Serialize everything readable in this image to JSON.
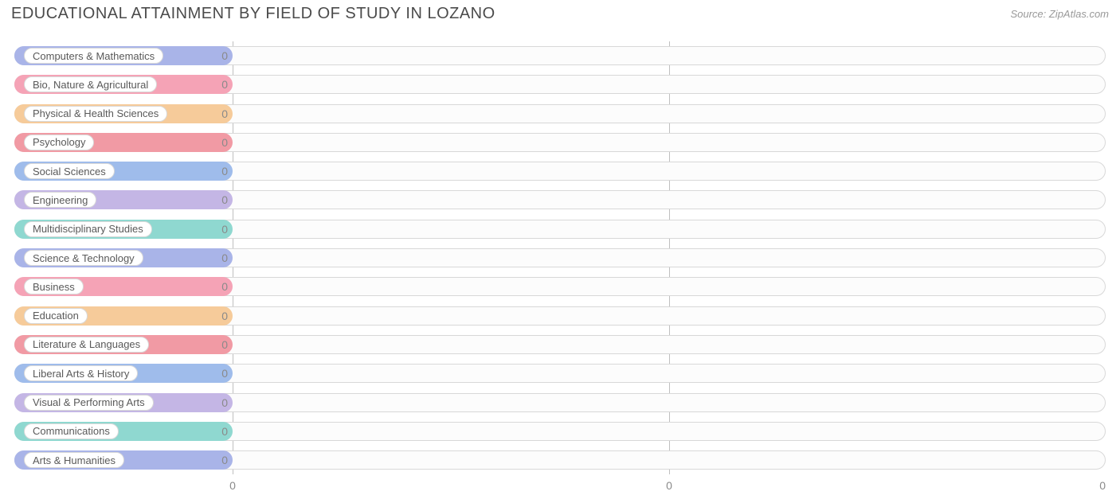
{
  "title": "EDUCATIONAL ATTAINMENT BY FIELD OF STUDY IN LOZANO",
  "source": "Source: ZipAtlas.com",
  "chart": {
    "type": "bar-horizontal",
    "background_color": "#ffffff",
    "track_border_color": "#d8d8d8",
    "track_fill": "#fcfcfc",
    "grid_color": "#bfbfbf",
    "label_fontsize": 13,
    "label_color": "#595959",
    "value_fontsize": 14,
    "value_color": "#8a8a8a",
    "title_fontsize": 20,
    "title_color": "#4b4b4b",
    "source_fontsize": 13,
    "source_color": "#999999",
    "bar_width_pct": 20,
    "x_ticks": [
      {
        "pos_pct": 20,
        "label": "0"
      },
      {
        "pos_pct": 60,
        "label": "0"
      },
      {
        "pos_pct": 100,
        "label": "0"
      }
    ],
    "gridlines_pct": [
      20,
      60
    ],
    "rows": [
      {
        "label": "Computers & Mathematics",
        "value": "0",
        "color": "#a9b4e8"
      },
      {
        "label": "Bio, Nature & Agricultural",
        "value": "0",
        "color": "#f5a3b6"
      },
      {
        "label": "Physical & Health Sciences",
        "value": "0",
        "color": "#f6cb9a"
      },
      {
        "label": "Psychology",
        "value": "0",
        "color": "#f19aa4"
      },
      {
        "label": "Social Sciences",
        "value": "0",
        "color": "#9fbceb"
      },
      {
        "label": "Engineering",
        "value": "0",
        "color": "#c4b6e5"
      },
      {
        "label": "Multidisciplinary Studies",
        "value": "0",
        "color": "#8fd8d0"
      },
      {
        "label": "Science & Technology",
        "value": "0",
        "color": "#a9b4e8"
      },
      {
        "label": "Business",
        "value": "0",
        "color": "#f5a3b6"
      },
      {
        "label": "Education",
        "value": "0",
        "color": "#f6cb9a"
      },
      {
        "label": "Literature & Languages",
        "value": "0",
        "color": "#f19aa4"
      },
      {
        "label": "Liberal Arts & History",
        "value": "0",
        "color": "#9fbceb"
      },
      {
        "label": "Visual & Performing Arts",
        "value": "0",
        "color": "#c4b6e5"
      },
      {
        "label": "Communications",
        "value": "0",
        "color": "#8fd8d0"
      },
      {
        "label": "Arts & Humanities",
        "value": "0",
        "color": "#a9b4e8"
      }
    ]
  }
}
